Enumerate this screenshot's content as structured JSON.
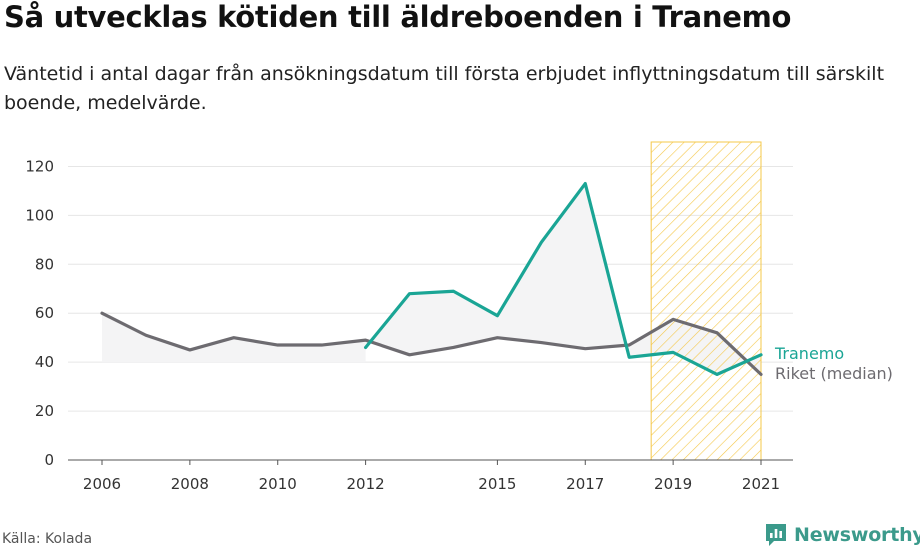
{
  "title": "Så utvecklas kötiden till äldreboenden i Tranemo",
  "subtitle": "Väntetid i antal dagar från ansökningsdatum till första erbjudet inflyttningsdatum till särskilt boende, medelvärde.",
  "source": "Källa: Kolada",
  "brand": {
    "name": "Newsworthy",
    "icon": "newsworthy-logo-icon",
    "color": "#3b9a8b"
  },
  "colors": {
    "tranemo": "#1aa595",
    "riket": "#6d6b70",
    "fill": "#f4f4f5",
    "highlight_stroke": "#f5c84a",
    "grid": "#e6e6e6",
    "axis": "#555555"
  },
  "chart_data": {
    "type": "line",
    "x_tick_labels": [
      "2006",
      "2008",
      "2010",
      "2012",
      "2015",
      "2017",
      "2019",
      "2021"
    ],
    "ylim": [
      0,
      130
    ],
    "y_ticks": [
      0,
      20,
      40,
      60,
      80,
      100,
      120
    ],
    "highlight_range": [
      2018.5,
      2021
    ],
    "area_between_series": true,
    "legend": "inline labels at line ends (right)",
    "series": [
      {
        "name": "Tranemo",
        "x": [
          2012,
          2013,
          2014,
          2015,
          2016,
          2017,
          2018,
          2019,
          2020,
          2021
        ],
        "values": [
          46,
          68,
          69,
          59,
          89,
          113,
          42,
          44,
          35,
          43
        ]
      },
      {
        "name": "Riket (median)",
        "x": [
          2006,
          2007,
          2008,
          2009,
          2010,
          2011,
          2012,
          2013,
          2014,
          2015,
          2016,
          2017,
          2018,
          2019,
          2020,
          2021
        ],
        "values": [
          60,
          51,
          45,
          50,
          47,
          47,
          49,
          43,
          46,
          50,
          48,
          45.5,
          47,
          57.5,
          52,
          35
        ]
      }
    ]
  }
}
